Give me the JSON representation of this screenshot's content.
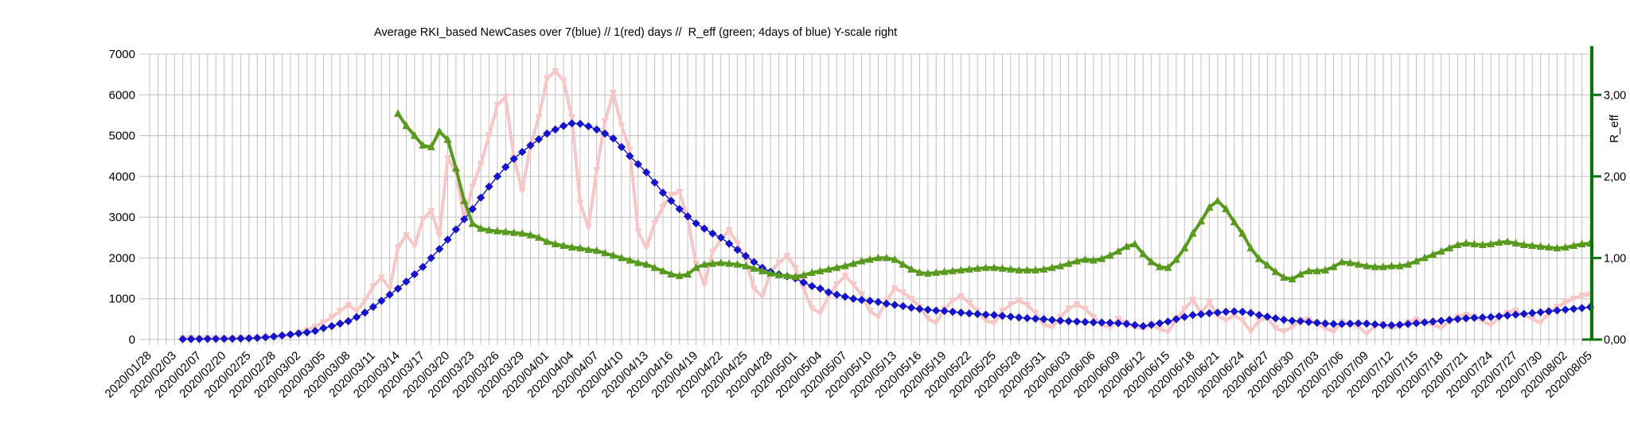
{
  "title": "Average RKI_based NewCases over 7(blue) // 1(red) days //  R_eff (green; 4days of blue) Y-scale right",
  "chart_data": {
    "type": "line",
    "title": "Average RKI_based NewCases over 7(blue) // 1(red) days //  R_eff (green; 4days of blue) Y-scale right",
    "points_total": 175,
    "label_every_nth_point": 3,
    "grid": true,
    "colors": {
      "grid": "#c0c0c0",
      "blue": "#1414cc",
      "red": "#f9c6c6",
      "green": "#579a1e",
      "right_axis": "#0c720c",
      "text": "#000000"
    },
    "x_tick_labels": [
      "2020/01/28",
      "2020/02/03",
      "2020/02/07",
      "2020/02/20",
      "2020/02/25",
      "2020/02/28",
      "2020/03/02",
      "2020/03/05",
      "2020/03/08",
      "2020/03/11",
      "2020/03/14",
      "2020/03/17",
      "2020/03/20",
      "2020/03/23",
      "2020/03/26",
      "2020/03/29",
      "2020/04/01",
      "2020/04/04",
      "2020/04/07",
      "2020/04/10",
      "2020/04/13",
      "2020/04/16",
      "2020/04/19",
      "2020/04/22",
      "2020/04/25",
      "2020/04/28",
      "2020/05/01",
      "2020/05/04",
      "2020/05/07",
      "2020/05/10",
      "2020/05/13",
      "2020/05/16",
      "2020/05/19",
      "2020/05/22",
      "2020/05/25",
      "2020/05/28",
      "2020/05/31",
      "2020/06/03",
      "2020/06/06",
      "2020/06/09",
      "2020/06/12",
      "2020/06/15",
      "2020/06/18",
      "2020/06/21",
      "2020/06/24",
      "2020/06/27",
      "2020/06/30",
      "2020/07/03",
      "2020/07/06",
      "2020/07/09",
      "2020/07/12",
      "2020/07/15",
      "2020/07/18",
      "2020/07/21",
      "2020/07/24",
      "2020/07/27",
      "2020/07/30",
      "2020/08/02",
      "2020/08/05"
    ],
    "y_left": {
      "ticks": [
        "0",
        "1000",
        "2000",
        "3000",
        "4000",
        "5000",
        "6000",
        "7000"
      ],
      "tick_values": [
        0,
        1000,
        2000,
        3000,
        4000,
        5000,
        6000,
        7000
      ],
      "range": [
        0,
        7000
      ]
    },
    "y_right": {
      "label": "R_eff",
      "ticks": [
        "0,00",
        "1,00",
        "2,00",
        "3,00"
      ],
      "tick_values": [
        0,
        1,
        2,
        3
      ],
      "range": [
        0,
        3.5
      ]
    },
    "series": [
      {
        "id": "newcases-1day",
        "name": "NewCases 1-day average (red)",
        "axis": "left",
        "color": "#f9c6c6",
        "marker": "triangle-down",
        "line_width": 4,
        "values": [
          null,
          null,
          null,
          null,
          30,
          45,
          25,
          40,
          28,
          35,
          22,
          45,
          35,
          30,
          50,
          65,
          80,
          110,
          160,
          230,
          320,
          420,
          550,
          700,
          850,
          700,
          950,
          1300,
          1520,
          1250,
          2250,
          2560,
          2300,
          2950,
          3150,
          2550,
          4450,
          4100,
          2950,
          3750,
          4300,
          5000,
          5750,
          5950,
          4450,
          3650,
          4750,
          5450,
          6400,
          6580,
          6350,
          5450,
          3350,
          2750,
          4150,
          5350,
          6050,
          5250,
          4650,
          2650,
          2250,
          2850,
          3250,
          3550,
          3620,
          2950,
          1850,
          1350,
          2150,
          2450,
          2680,
          2350,
          1950,
          1250,
          1050,
          1650,
          1880,
          2050,
          1750,
          1250,
          760,
          650,
          1050,
          1350,
          1560,
          1350,
          1100,
          700,
          560,
          950,
          1260,
          1150,
          1000,
          800,
          510,
          410,
          750,
          960,
          1060,
          900,
          700,
          460,
          400,
          700,
          860,
          960,
          850,
          650,
          360,
          300,
          550,
          760,
          860,
          750,
          550,
          360,
          300,
          500,
          400,
          310,
          270,
          370,
          255,
          185,
          500,
          750,
          975,
          660,
          915,
          585,
          470,
          590,
          470,
          200,
          470,
          530,
          275,
          200,
          300,
          470,
          490,
          400,
          275,
          200,
          430,
          375,
          315,
          145,
          330,
          375,
          275,
          335,
          425,
          485,
          425,
          355,
          285,
          455,
          555,
          605,
          555,
          455,
          355,
          555,
          655,
          705,
          605,
          505,
          405,
          655,
          805,
          905,
          1000,
          1080,
          1100
        ]
      },
      {
        "id": "newcases-7day",
        "name": "NewCases 7-day average (blue)",
        "axis": "left",
        "color": "#1414cc",
        "marker": "diamond",
        "line_width": 1.4,
        "values": [
          null,
          null,
          null,
          null,
          10,
          12,
          14,
          15,
          16,
          18,
          20,
          25,
          30,
          40,
          55,
          75,
          100,
          125,
          150,
          175,
          210,
          280,
          330,
          390,
          450,
          550,
          660,
          800,
          950,
          1100,
          1250,
          1420,
          1600,
          1780,
          2000,
          2220,
          2450,
          2700,
          2950,
          3200,
          3480,
          3750,
          4000,
          4230,
          4430,
          4600,
          4760,
          4910,
          5050,
          5150,
          5240,
          5300,
          5290,
          5230,
          5150,
          5050,
          4930,
          4720,
          4500,
          4300,
          4100,
          3850,
          3600,
          3400,
          3200,
          3020,
          2850,
          2720,
          2600,
          2500,
          2350,
          2200,
          2050,
          1900,
          1760,
          1660,
          1600,
          1550,
          1500,
          1400,
          1310,
          1250,
          1160,
          1100,
          1050,
          1000,
          970,
          950,
          920,
          880,
          850,
          820,
          780,
          750,
          730,
          710,
          700,
          680,
          660,
          640,
          625,
          610,
          600,
          580,
          560,
          540,
          525,
          510,
          500,
          480,
          462,
          450,
          440,
          430,
          420,
          418,
          410,
          400,
          385,
          355,
          330,
          360,
          400,
          440,
          500,
          555,
          600,
          620,
          645,
          660,
          680,
          690,
          680,
          650,
          600,
          560,
          520,
          485,
          460,
          450,
          430,
          410,
          395,
          382,
          380,
          390,
          398,
          390,
          372,
          355,
          350,
          362,
          380,
          400,
          420,
          440,
          460,
          480,
          500,
          520,
          532,
          542,
          552,
          570,
          590,
          610,
          630,
          650,
          670,
          692,
          712,
          732,
          752,
          772,
          795
        ]
      },
      {
        "id": "r-eff",
        "name": "R_eff (green, right scale)",
        "axis": "right",
        "color": "#579a1e",
        "marker": "triangle-up",
        "line_width": 4,
        "values": [
          null,
          null,
          null,
          null,
          null,
          null,
          null,
          null,
          null,
          null,
          null,
          null,
          null,
          null,
          null,
          null,
          null,
          null,
          null,
          null,
          null,
          null,
          null,
          null,
          null,
          null,
          null,
          null,
          null,
          null,
          2.77,
          2.62,
          2.5,
          2.38,
          2.36,
          2.55,
          2.45,
          2.1,
          1.7,
          1.42,
          1.36,
          1.34,
          1.33,
          1.32,
          1.31,
          1.3,
          1.28,
          1.25,
          1.2,
          1.17,
          1.15,
          1.13,
          1.12,
          1.1,
          1.09,
          1.06,
          1.03,
          1.0,
          0.97,
          0.94,
          0.92,
          0.88,
          0.84,
          0.8,
          0.78,
          0.8,
          0.88,
          0.92,
          0.93,
          0.94,
          0.93,
          0.92,
          0.9,
          0.87,
          0.84,
          0.81,
          0.79,
          0.78,
          0.77,
          0.79,
          0.82,
          0.84,
          0.86,
          0.88,
          0.9,
          0.93,
          0.96,
          0.98,
          1.0,
          1.0,
          0.98,
          0.92,
          0.86,
          0.82,
          0.81,
          0.82,
          0.83,
          0.84,
          0.85,
          0.86,
          0.87,
          0.88,
          0.88,
          0.87,
          0.86,
          0.85,
          0.85,
          0.85,
          0.86,
          0.88,
          0.9,
          0.93,
          0.96,
          0.98,
          0.97,
          0.99,
          1.03,
          1.08,
          1.14,
          1.17,
          1.05,
          0.95,
          0.89,
          0.88,
          0.98,
          1.12,
          1.3,
          1.45,
          1.62,
          1.7,
          1.6,
          1.44,
          1.3,
          1.12,
          0.99,
          0.91,
          0.83,
          0.76,
          0.74,
          0.8,
          0.84,
          0.84,
          0.85,
          0.89,
          0.95,
          0.94,
          0.92,
          0.9,
          0.89,
          0.89,
          0.9,
          0.9,
          0.92,
          0.96,
          1.0,
          1.04,
          1.08,
          1.12,
          1.16,
          1.18,
          1.17,
          1.16,
          1.17,
          1.19,
          1.2,
          1.18,
          1.16,
          1.15,
          1.14,
          1.13,
          1.12,
          1.13,
          1.15,
          1.17,
          1.18
        ]
      }
    ]
  }
}
